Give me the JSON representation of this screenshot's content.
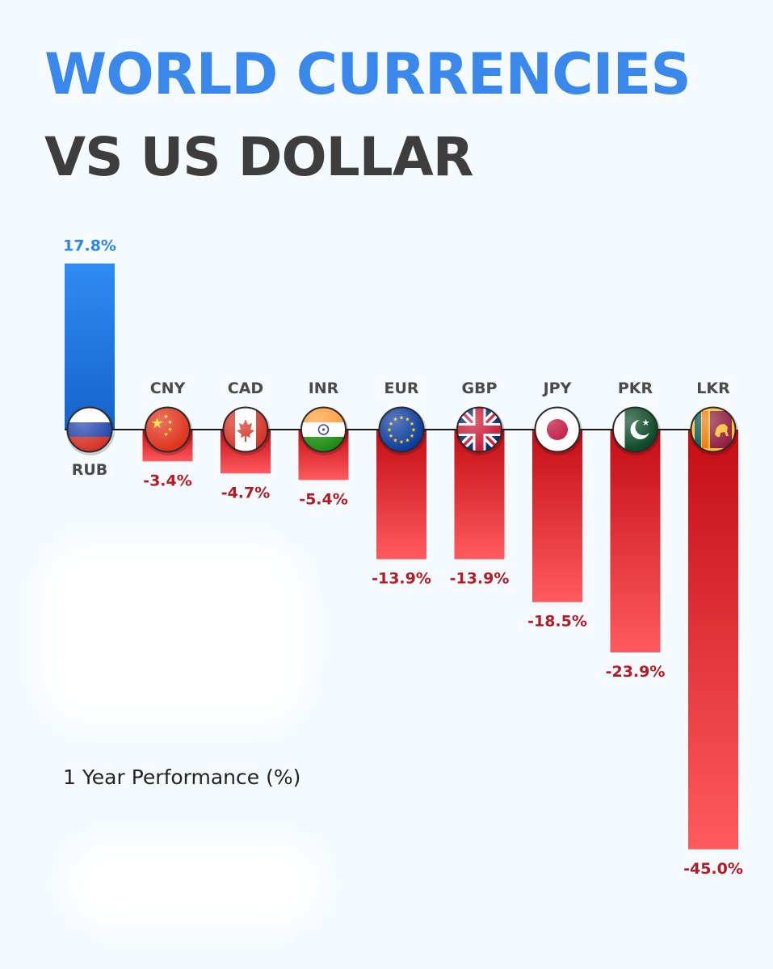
{
  "header": {
    "title_line1": "WORLD CURRENCIES",
    "title_line2": "VS US DOLLAR"
  },
  "footnote": "1 Year Performance (%)",
  "colors": {
    "positive": "#2d87ea",
    "negative": "#e02428",
    "title_main": "#3b88ec",
    "title_sub": "#3d3d3d",
    "code_label": "#4a4a4a",
    "negative_label": "#b71a23",
    "positive_label": "#2d87ea"
  },
  "chart_data": {
    "type": "bar",
    "title": "WORLD CURRENCIES VS US DOLLAR",
    "subtitle": "1 Year Performance (%)",
    "categories": [
      "RUB",
      "CNY",
      "CAD",
      "INR",
      "EUR",
      "GBP",
      "JPY",
      "PKR",
      "LKR"
    ],
    "values": [
      17.8,
      -3.4,
      -4.7,
      -5.4,
      -13.9,
      -13.9,
      -18.5,
      -23.9,
      -45.0
    ],
    "labels": [
      "17.8%",
      "-3.4%",
      "-4.7%",
      "-5.4%",
      "-13.9%",
      "-13.9%",
      "-18.5%",
      "-23.9%",
      "-45.0%"
    ],
    "flags": [
      "russia-flag-icon",
      "china-flag-icon",
      "canada-flag-icon",
      "india-flag-icon",
      "eu-flag-icon",
      "uk-flag-icon",
      "japan-flag-icon",
      "pakistan-flag-icon",
      "sri-lanka-flag-icon"
    ],
    "ylim": [
      -45.0,
      17.8
    ],
    "xlabel": "",
    "ylabel": "",
    "grid": false,
    "legend": "none"
  }
}
